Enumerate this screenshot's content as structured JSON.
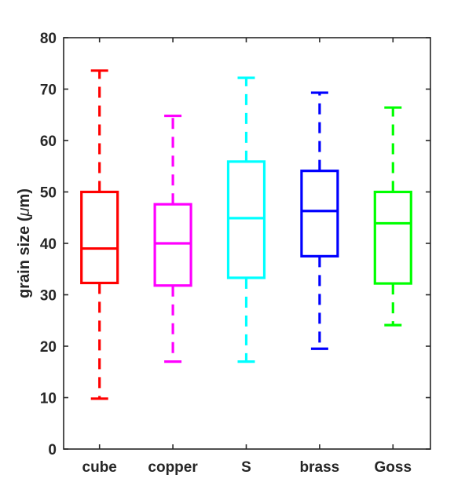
{
  "chart_data": {
    "type": "box",
    "title": "",
    "xlabel": "",
    "ylabel_prefix": "grain size (",
    "ylabel_symbol": "μ",
    "ylabel_suffix": "m)",
    "ylim": [
      0,
      80
    ],
    "yticks": [
      0,
      10,
      20,
      30,
      40,
      50,
      60,
      70,
      80
    ],
    "grid": false,
    "legend": "none",
    "categories": [
      "cube",
      "copper",
      "S",
      "brass",
      "Goss"
    ],
    "series": [
      {
        "category": "cube",
        "color": "#ff0000",
        "whisker_low": 9.8,
        "q1": 32.3,
        "median": 39.0,
        "q3": 50.0,
        "whisker_high": 73.6
      },
      {
        "category": "copper",
        "color": "#ff00ff",
        "whisker_low": 17.0,
        "q1": 31.8,
        "median": 40.0,
        "q3": 47.6,
        "whisker_high": 64.8
      },
      {
        "category": "S",
        "color": "#00ffff",
        "whisker_low": 17.0,
        "q1": 33.3,
        "median": 44.9,
        "q3": 55.9,
        "whisker_high": 72.2
      },
      {
        "category": "brass",
        "color": "#0000ff",
        "whisker_low": 19.5,
        "q1": 37.5,
        "median": 46.3,
        "q3": 54.1,
        "whisker_high": 69.3
      },
      {
        "category": "Goss",
        "color": "#00ff00",
        "whisker_low": 24.1,
        "q1": 32.2,
        "median": 43.9,
        "q3": 50.0,
        "whisker_high": 66.4
      }
    ]
  }
}
